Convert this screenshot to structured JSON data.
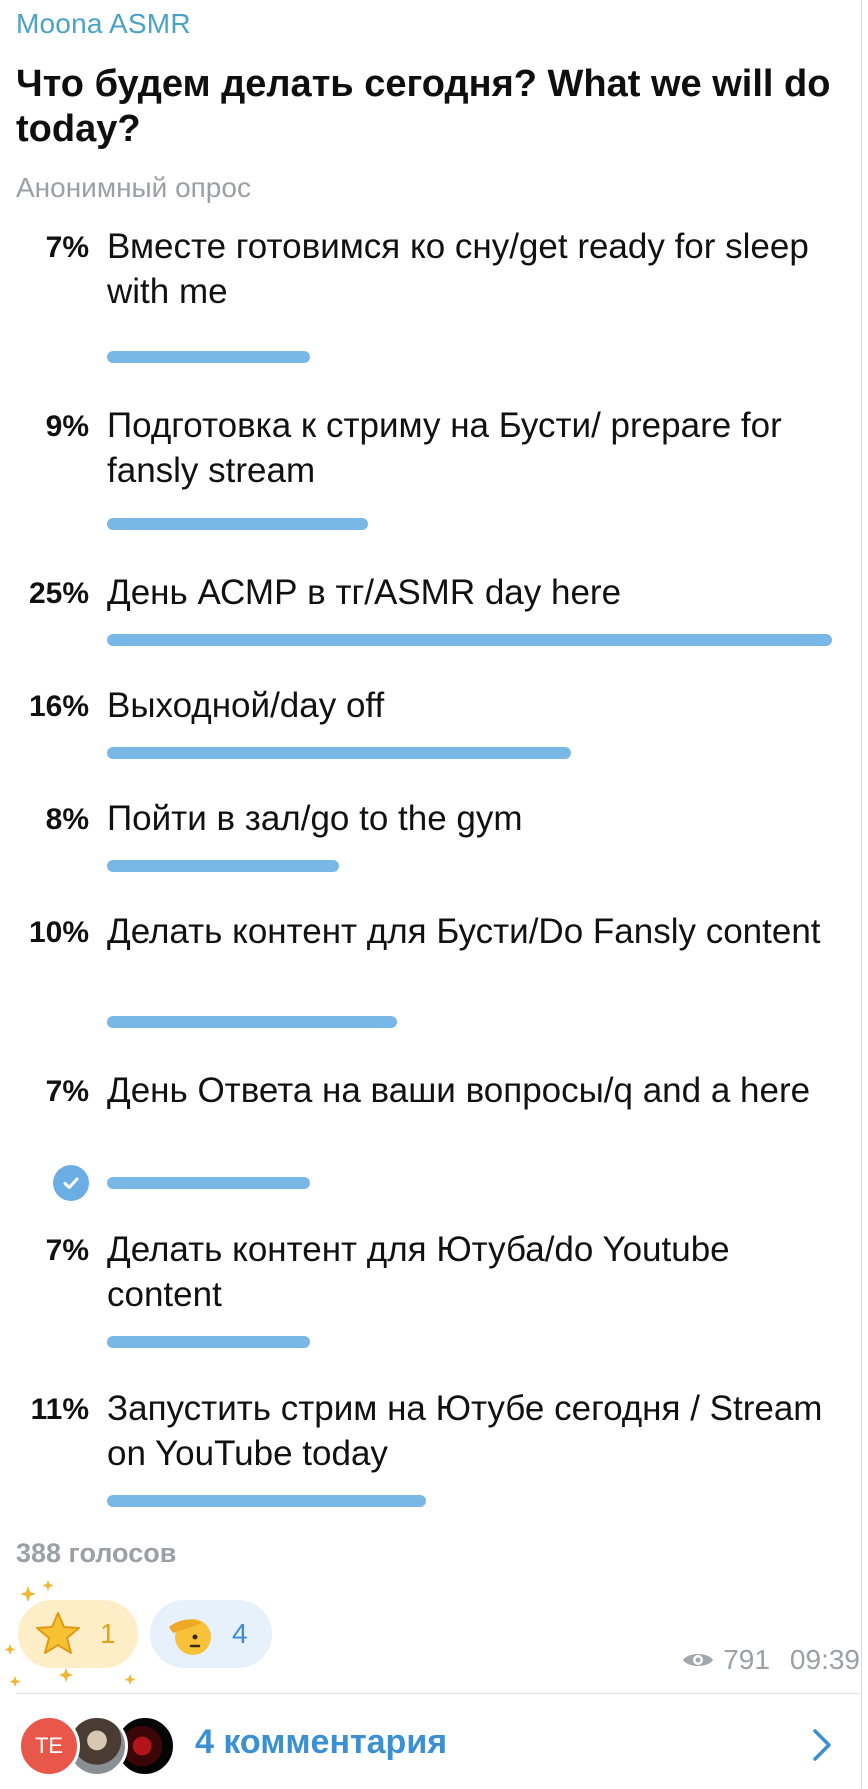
{
  "post": {
    "channel_name": "Moona ASMR",
    "question": "Что будем делать сегодня? What we will do today?",
    "poll_type": "Анонимный опрос"
  },
  "poll": {
    "options": [
      {
        "percent_label": "7%",
        "percent": 7,
        "text": "Вместе готовимся ко сну/get ready for sleep with me",
        "selected": false
      },
      {
        "percent_label": "9%",
        "percent": 9,
        "text": "Подготовка к стриму на Бусти/ prepare for fansly stream",
        "selected": false
      },
      {
        "percent_label": "25%",
        "percent": 25,
        "text": "День АСМР в тг/ASMR day here",
        "selected": false
      },
      {
        "percent_label": "16%",
        "percent": 16,
        "text": "Выходной/day off",
        "selected": false
      },
      {
        "percent_label": "8%",
        "percent": 8,
        "text": "Пойти в зал/go to the gym",
        "selected": false
      },
      {
        "percent_label": "10%",
        "percent": 10,
        "text": "Делать контент для Бусти/Do Fansly content",
        "selected": false
      },
      {
        "percent_label": "7%",
        "percent": 7,
        "text": "День Ответа на ваши вопросы/q and a here",
        "selected": true
      },
      {
        "percent_label": "7%",
        "percent": 7,
        "text": "Делать контент для Ютуба/do Youtube content",
        "selected": false
      },
      {
        "percent_label": "11%",
        "percent": 11,
        "text": "Запустить стрим на Ютубе сегодня / Stream on YouTube today",
        "selected": false
      }
    ],
    "votes_label": "388 голосов"
  },
  "reactions": [
    {
      "icon": "star-emoji-icon",
      "count": "1"
    },
    {
      "icon": "saluting-face-emoji-icon",
      "count": "4"
    }
  ],
  "meta": {
    "views": "791",
    "time": "09:39"
  },
  "comments": {
    "avatar_initials": "TE",
    "label": "4 комментария"
  },
  "colors": {
    "accent": "#3b8fd3",
    "bar": "#79b8e6",
    "channel": "#4aa3c7",
    "muted": "#9aa0a6"
  }
}
